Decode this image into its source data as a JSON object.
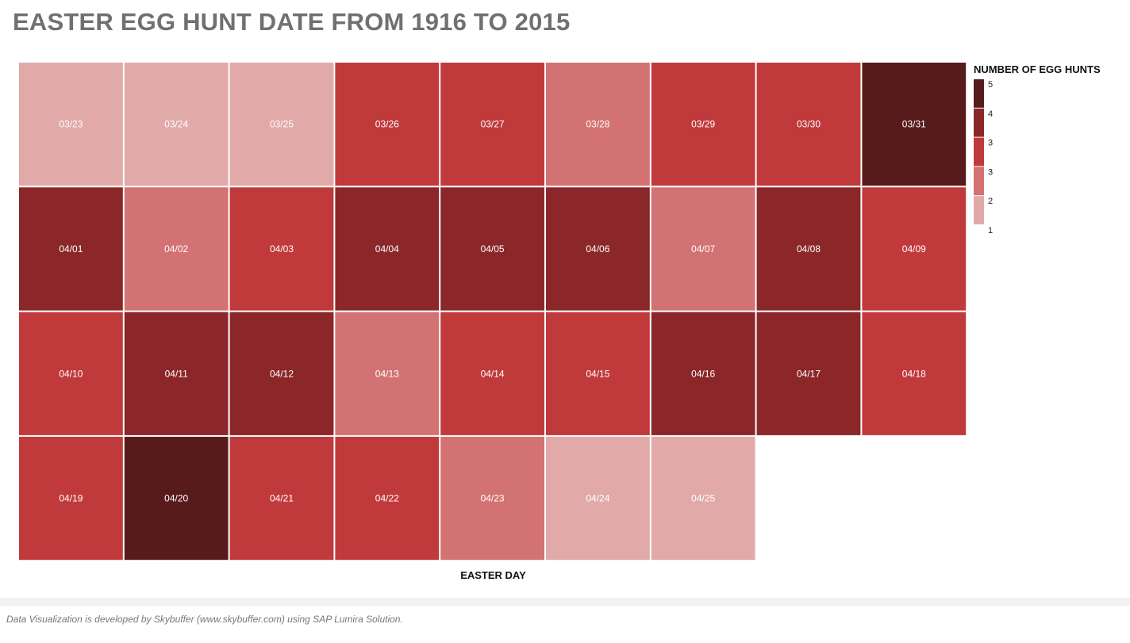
{
  "title": "EASTER EGG HUNT DATE FROM 1916 TO 2015",
  "footer": "Data Visualization is developed by Skybuffer (www.skybuffer.com) using SAP Lumira Solution.",
  "chart_data": {
    "type": "heatmap",
    "title": "EASTER EGG HUNT DATE FROM 1916 TO 2015",
    "xlabel": "EASTER DAY",
    "legend_title": "NUMBER OF EGG HUNTS",
    "legend_position": "right",
    "legend_ticks": [
      "5",
      "4",
      "3",
      "3",
      "2",
      "1"
    ],
    "color_scale": [
      "#e2a9a9",
      "#d37272",
      "#c03a3c",
      "#8b2729",
      "#581b1c"
    ],
    "columns": 9,
    "cells": [
      {
        "label": "03/23",
        "value": 1
      },
      {
        "label": "03/24",
        "value": 1
      },
      {
        "label": "03/25",
        "value": 1
      },
      {
        "label": "03/26",
        "value": 3
      },
      {
        "label": "03/27",
        "value": 3
      },
      {
        "label": "03/28",
        "value": 2
      },
      {
        "label": "03/29",
        "value": 3
      },
      {
        "label": "03/30",
        "value": 3
      },
      {
        "label": "03/31",
        "value": 5
      },
      {
        "label": "04/01",
        "value": 4
      },
      {
        "label": "04/02",
        "value": 2
      },
      {
        "label": "04/03",
        "value": 3
      },
      {
        "label": "04/04",
        "value": 4
      },
      {
        "label": "04/05",
        "value": 4
      },
      {
        "label": "04/06",
        "value": 4
      },
      {
        "label": "04/07",
        "value": 2
      },
      {
        "label": "04/08",
        "value": 4
      },
      {
        "label": "04/09",
        "value": 3
      },
      {
        "label": "04/10",
        "value": 3
      },
      {
        "label": "04/11",
        "value": 4
      },
      {
        "label": "04/12",
        "value": 4
      },
      {
        "label": "04/13",
        "value": 2
      },
      {
        "label": "04/14",
        "value": 3
      },
      {
        "label": "04/15",
        "value": 3
      },
      {
        "label": "04/16",
        "value": 4
      },
      {
        "label": "04/17",
        "value": 4
      },
      {
        "label": "04/18",
        "value": 3
      },
      {
        "label": "04/19",
        "value": 3
      },
      {
        "label": "04/20",
        "value": 5
      },
      {
        "label": "04/21",
        "value": 3
      },
      {
        "label": "04/22",
        "value": 3
      },
      {
        "label": "04/23",
        "value": 2
      },
      {
        "label": "04/24",
        "value": 1
      },
      {
        "label": "04/25",
        "value": 1
      }
    ]
  }
}
